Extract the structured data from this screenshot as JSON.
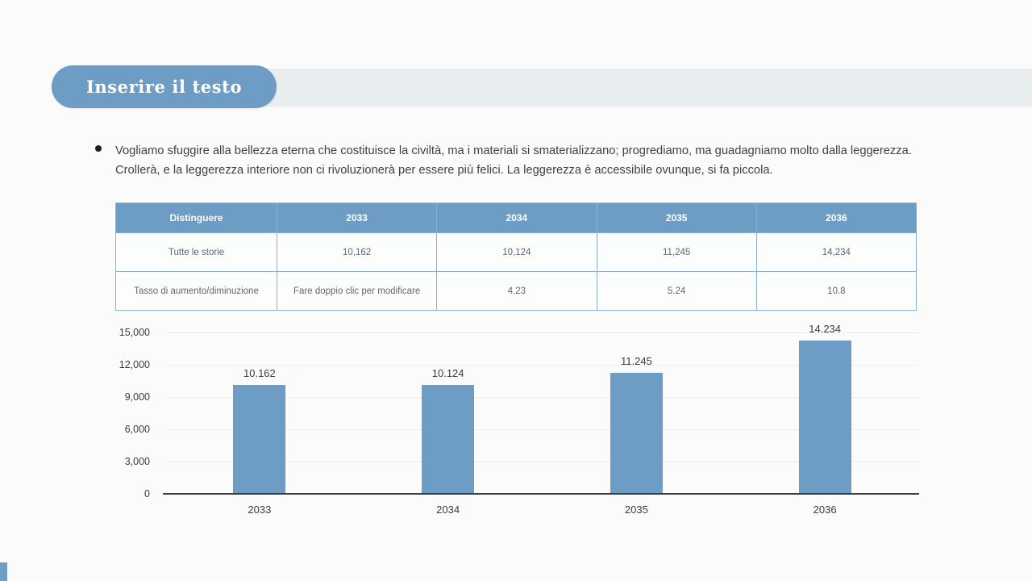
{
  "colors": {
    "accent_blue": "#6d9dc5",
    "pill_blue": "#6d9cc4",
    "band_gray": "#e8edf0",
    "table_border": "#87b0d4",
    "axis_dark": "#3f3f3f"
  },
  "title_pill": {
    "label": "Inserire il testo"
  },
  "bullet": {
    "text": "Vogliamo sfuggire alla bellezza eterna che costituisce la civiltà, ma i materiali si smaterializzano; progrediamo, ma guadagniamo molto dalla leggerezza. Crollerà, e la leggerezza interiore non ci rivoluzionerà per essere più felici. La leggerezza è accessibile ovunque, si fa piccola."
  },
  "table": {
    "headers": [
      "Distinguere",
      "2033",
      "2034",
      "2035",
      "2036"
    ],
    "rows": [
      {
        "label": "Tutte le storie",
        "values": [
          "10,162",
          "10,124",
          "11,245",
          "14,234"
        ]
      },
      {
        "label": "Tasso di aumento/diminuzione",
        "values": [
          "Fare doppio clic per modificare",
          "4.23",
          "5.24",
          "10.8"
        ]
      }
    ]
  },
  "chart_data": {
    "type": "bar",
    "title": "",
    "xlabel": "",
    "ylabel": "",
    "categories": [
      "2033",
      "2034",
      "2035",
      "2036"
    ],
    "values": [
      10162,
      10124,
      11245,
      14234
    ],
    "bar_labels": [
      "10.162",
      "10.124",
      "11.245",
      "14.234"
    ],
    "ytick_labels": [
      "15,000",
      "12,000",
      "9,000",
      "6,000",
      "3,000",
      "0"
    ],
    "ylim": [
      0,
      15000
    ],
    "grid": true,
    "legend": "none",
    "bar_color": "#6d9dc5"
  }
}
